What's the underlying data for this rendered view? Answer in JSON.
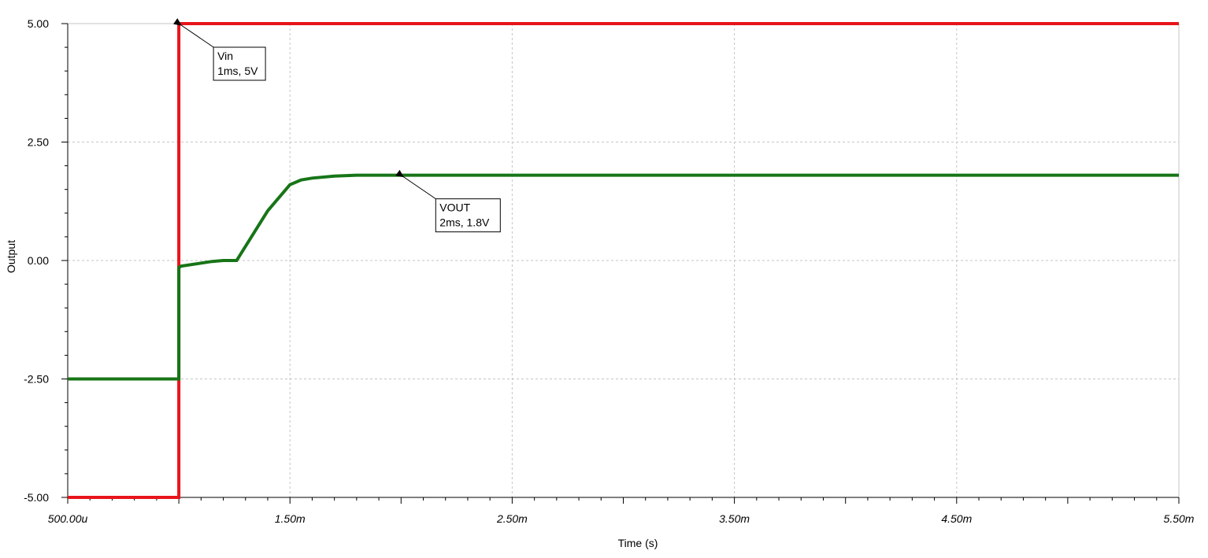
{
  "chart_data": {
    "type": "line",
    "xlabel": "Time (s)",
    "ylabel": "Output",
    "xlim": [
      0.0005,
      0.0055
    ],
    "ylim": [
      -5,
      5
    ],
    "x_ticks": [
      0.0005,
      0.0015,
      0.0025,
      0.0035,
      0.0045,
      0.0055
    ],
    "x_tick_labels": [
      "500.00u",
      "1.50m",
      "2.50m",
      "3.50m",
      "4.50m",
      "5.50m"
    ],
    "y_ticks": [
      -5,
      -2.5,
      0,
      2.5,
      5
    ],
    "y_tick_labels": [
      "-5.00",
      "-2.50",
      "0.00",
      "2.50",
      "5.00"
    ],
    "grid": true,
    "series": [
      {
        "name": "Vin",
        "color": "#e8141b",
        "x": [
          0.0005,
          0.001,
          0.001,
          0.0055
        ],
        "y": [
          -5,
          -5,
          5,
          5
        ]
      },
      {
        "name": "VOUT",
        "color": "#177517",
        "x": [
          0.0005,
          0.001,
          0.001,
          0.00101,
          0.00115,
          0.0012,
          0.00126,
          0.0013,
          0.0014,
          0.0015,
          0.00155,
          0.0016,
          0.0017,
          0.0018,
          0.002,
          0.0055
        ],
        "y": [
          -2.5,
          -2.5,
          -0.15,
          -0.12,
          -0.02,
          0.0,
          0.0,
          0.3,
          1.05,
          1.6,
          1.7,
          1.74,
          1.78,
          1.8,
          1.8,
          1.8
        ]
      }
    ],
    "annotations": [
      {
        "series": "Vin",
        "line1": "Vin",
        "line2": "1ms, 5V",
        "x": 0.001,
        "y": 5
      },
      {
        "series": "VOUT",
        "line1": "VOUT",
        "line2": "2ms, 1.8V",
        "x": 0.002,
        "y": 1.8
      }
    ]
  }
}
